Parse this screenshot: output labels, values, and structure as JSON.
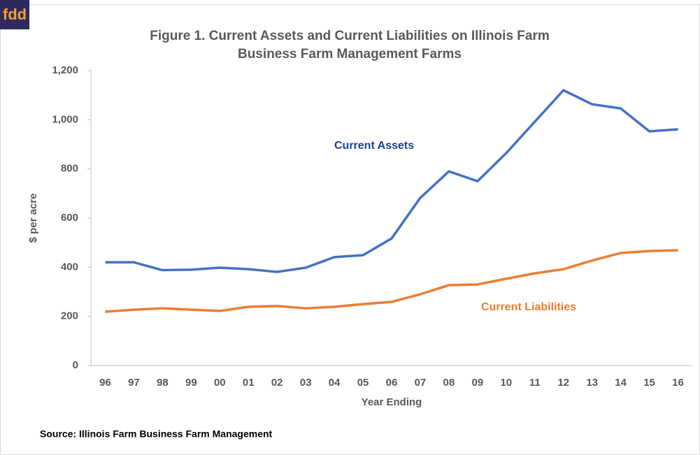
{
  "logo": "fdd",
  "chart_data": {
    "type": "line",
    "title": "Figure 1. Current Assets and Current Liabilities on Illinois Farm Business Farm Management Farms",
    "title_lines": [
      "Figure 1. Current Assets and Current Liabilities on Illinois Farm",
      "Business Farm Management Farms"
    ],
    "x_label": "Year Ending",
    "y_label": "$ per acre",
    "source": "Source:  Illinois Farm Business Farm Management",
    "categories": [
      "96",
      "97",
      "98",
      "99",
      "00",
      "01",
      "02",
      "03",
      "04",
      "05",
      "06",
      "07",
      "08",
      "09",
      "10",
      "11",
      "12",
      "13",
      "14",
      "15",
      "16"
    ],
    "series": [
      {
        "name": "Current Assets",
        "color": "#4472c4",
        "values": [
          420,
          420,
          388,
          390,
          398,
          392,
          381,
          398,
          441,
          449,
          517,
          682,
          790,
          750,
          864,
          992,
          1120,
          1063,
          1046,
          953,
          961
        ]
      },
      {
        "name": "Current Liabilities",
        "color": "#ed7d31",
        "values": [
          219,
          227,
          233,
          227,
          222,
          239,
          242,
          233,
          239,
          250,
          259,
          290,
          327,
          330,
          353,
          375,
          392,
          427,
          458,
          466,
          469
        ]
      }
    ],
    "ylim": [
      0,
      1200
    ],
    "yticks": [
      0,
      200,
      400,
      600,
      800,
      {
        "value": 1000,
        "label": "1,000"
      },
      {
        "value": 1200,
        "label": "1,200"
      }
    ],
    "grid": false
  }
}
